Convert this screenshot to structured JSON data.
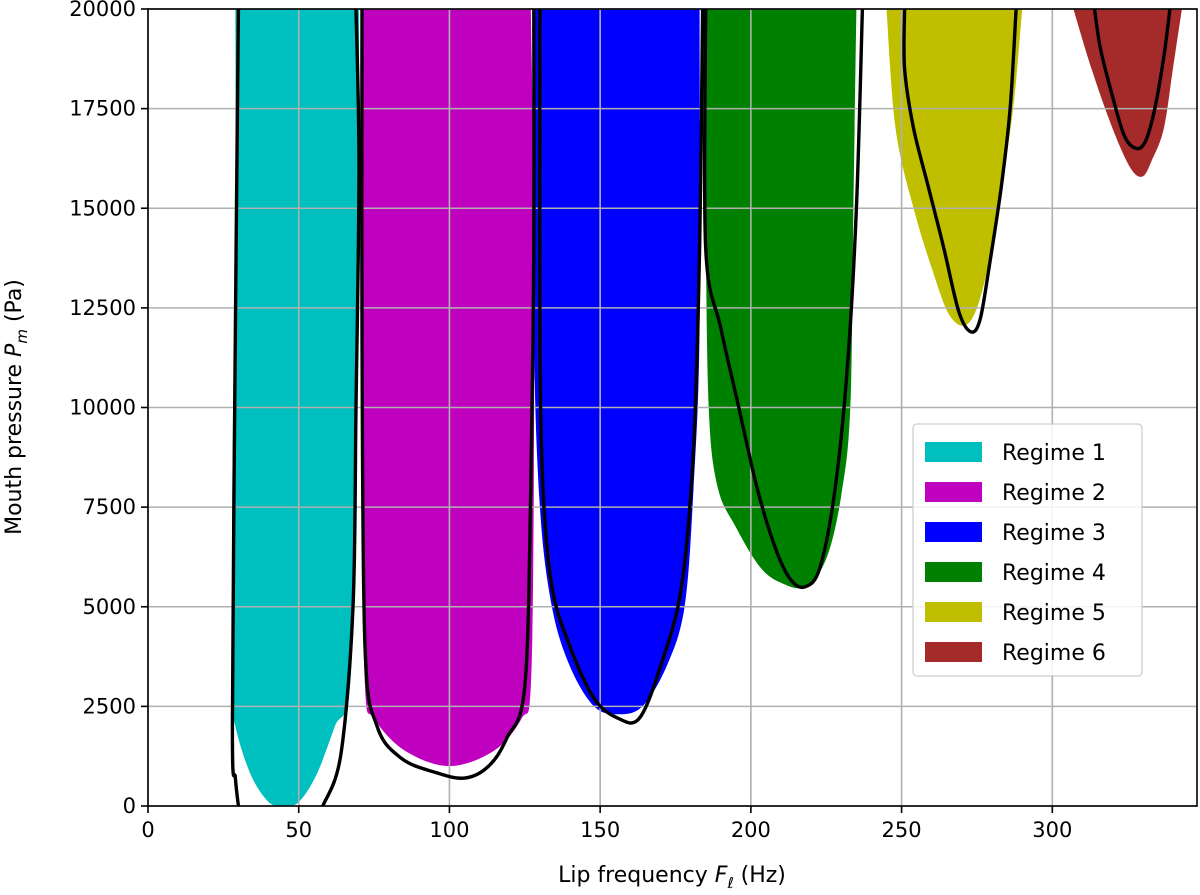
{
  "chart_data": {
    "type": "area",
    "xlabel": "Lip frequency F_ℓ (Hz)",
    "xlabel_parts": {
      "prefix": "Lip frequency ",
      "var": "F",
      "sub": "ℓ",
      "suffix": " (Hz)"
    },
    "ylabel": "Mouth pressure P_m (Pa)",
    "ylabel_parts": {
      "prefix": "Mouth pressure ",
      "var": "P",
      "sub": "m",
      "suffix": " (Pa)"
    },
    "xlim": [
      0,
      348
    ],
    "ylim": [
      0,
      20000
    ],
    "xticks": [
      0,
      50,
      100,
      150,
      200,
      250,
      300
    ],
    "yticks": [
      0,
      2500,
      5000,
      7500,
      10000,
      12500,
      15000,
      17500,
      20000
    ],
    "grid": true,
    "legend_position": "center-right",
    "series": [
      {
        "name": "Regime 1",
        "color": "#00bfbf",
        "region": [
          [
            29,
            20000
          ],
          [
            29,
            15000
          ],
          [
            28,
            8000
          ],
          [
            28,
            3000
          ],
          [
            29,
            2000
          ],
          [
            34,
            800
          ],
          [
            40,
            100
          ],
          [
            45,
            0
          ],
          [
            50,
            100
          ],
          [
            56,
            800
          ],
          [
            62,
            2000
          ],
          [
            67,
            3000
          ],
          [
            69,
            8000
          ],
          [
            70,
            15000
          ],
          [
            70,
            20000
          ]
        ],
        "boundary": [
          [
            30,
            20000
          ],
          [
            29,
            12000
          ],
          [
            28,
            2000
          ],
          [
            29,
            700
          ],
          [
            30,
            0
          ],
          null,
          [
            58,
            0
          ],
          [
            64,
            1300
          ],
          [
            68,
            5000
          ],
          [
            69,
            10000
          ],
          [
            70,
            16000
          ],
          [
            69,
            20000
          ]
        ]
      },
      {
        "name": "Regime 2",
        "color": "#bf00bf",
        "region": [
          [
            71,
            20000
          ],
          [
            71,
            15000
          ],
          [
            71,
            8000
          ],
          [
            72,
            3000
          ],
          [
            75,
            2200
          ],
          [
            85,
            1400
          ],
          [
            100,
            1000
          ],
          [
            115,
            1400
          ],
          [
            124,
            2200
          ],
          [
            127,
            3000
          ],
          [
            128,
            8000
          ],
          [
            128,
            15000
          ],
          [
            127,
            20000
          ]
        ],
        "boundary": [
          [
            71,
            20000
          ],
          [
            71,
            12000
          ],
          [
            72,
            4000
          ],
          [
            76,
            2000
          ],
          [
            84,
            1200
          ],
          [
            95,
            850
          ],
          [
            105,
            700
          ],
          [
            113,
            1000
          ],
          [
            119,
            1700
          ],
          [
            125,
            3000
          ],
          [
            127,
            8000
          ],
          [
            128,
            14000
          ],
          [
            128,
            20000
          ]
        ]
      },
      {
        "name": "Regime 3",
        "color": "#0000ff",
        "region": [
          [
            128,
            20000
          ],
          [
            128,
            12000
          ],
          [
            130,
            7500
          ],
          [
            134,
            5000
          ],
          [
            140,
            3500
          ],
          [
            148,
            2500
          ],
          [
            156,
            2300
          ],
          [
            164,
            2500
          ],
          [
            172,
            3500
          ],
          [
            178,
            5000
          ],
          [
            181,
            8000
          ],
          [
            183,
            12000
          ],
          [
            183,
            20000
          ]
        ],
        "boundary": [
          [
            130,
            20000
          ],
          [
            130,
            12000
          ],
          [
            131,
            8000
          ],
          [
            134,
            5500
          ],
          [
            140,
            4000
          ],
          [
            148,
            2700
          ],
          [
            156,
            2200
          ],
          [
            163,
            2200
          ],
          [
            170,
            3500
          ],
          [
            177,
            5500
          ],
          [
            181,
            9000
          ],
          [
            183,
            14000
          ],
          [
            184,
            20000
          ]
        ]
      },
      {
        "name": "Regime 4",
        "color": "#008000",
        "region": [
          [
            185,
            20000
          ],
          [
            185,
            15000
          ],
          [
            186,
            10000
          ],
          [
            189,
            8000
          ],
          [
            195,
            7000
          ],
          [
            203,
            6000
          ],
          [
            210,
            5600
          ],
          [
            218,
            5500
          ],
          [
            225,
            6200
          ],
          [
            230,
            7800
          ],
          [
            233,
            10000
          ],
          [
            234,
            15000
          ],
          [
            235,
            20000
          ]
        ],
        "boundary": [
          [
            185,
            20000
          ],
          [
            185,
            14000
          ],
          [
            190,
            12000
          ],
          [
            196,
            10000
          ],
          [
            202,
            8000
          ],
          [
            208,
            6500
          ],
          [
            213,
            5700
          ],
          [
            218,
            5500
          ],
          [
            223,
            6000
          ],
          [
            228,
            8000
          ],
          [
            232,
            11000
          ],
          [
            235,
            15000
          ],
          [
            237,
            20000
          ]
        ]
      },
      {
        "name": "Regime 5",
        "color": "#bfbf00",
        "region": [
          [
            245,
            20000
          ],
          [
            248,
            17000
          ],
          [
            254,
            15000
          ],
          [
            260,
            13500
          ],
          [
            266,
            12300
          ],
          [
            272,
            12100
          ],
          [
            277,
            13000
          ],
          [
            282,
            15000
          ],
          [
            287,
            17500
          ],
          [
            290,
            20000
          ]
        ],
        "boundary": [
          [
            251,
            20000
          ],
          [
            251,
            18500
          ],
          [
            254,
            17000
          ],
          [
            259,
            15500
          ],
          [
            264,
            14000
          ],
          [
            269,
            12400
          ],
          [
            273,
            11900
          ],
          [
            276,
            12200
          ],
          [
            279,
            13500
          ],
          [
            283,
            15500
          ],
          [
            286,
            17500
          ],
          [
            288,
            20000
          ]
        ]
      },
      {
        "name": "Regime 6",
        "color": "#a52a2a",
        "region": [
          [
            307,
            20000
          ],
          [
            313,
            18500
          ],
          [
            320,
            17000
          ],
          [
            326,
            16000
          ],
          [
            330,
            15800
          ],
          [
            333,
            16200
          ],
          [
            337,
            17000
          ],
          [
            340,
            18500
          ],
          [
            343,
            20000
          ]
        ],
        "boundary": [
          [
            314,
            20000
          ],
          [
            316,
            19000
          ],
          [
            320,
            17800
          ],
          [
            324,
            16800
          ],
          [
            328,
            16500
          ],
          [
            331,
            16700
          ],
          [
            334,
            17500
          ],
          [
            337,
            18800
          ],
          [
            339,
            20000
          ]
        ]
      }
    ]
  }
}
